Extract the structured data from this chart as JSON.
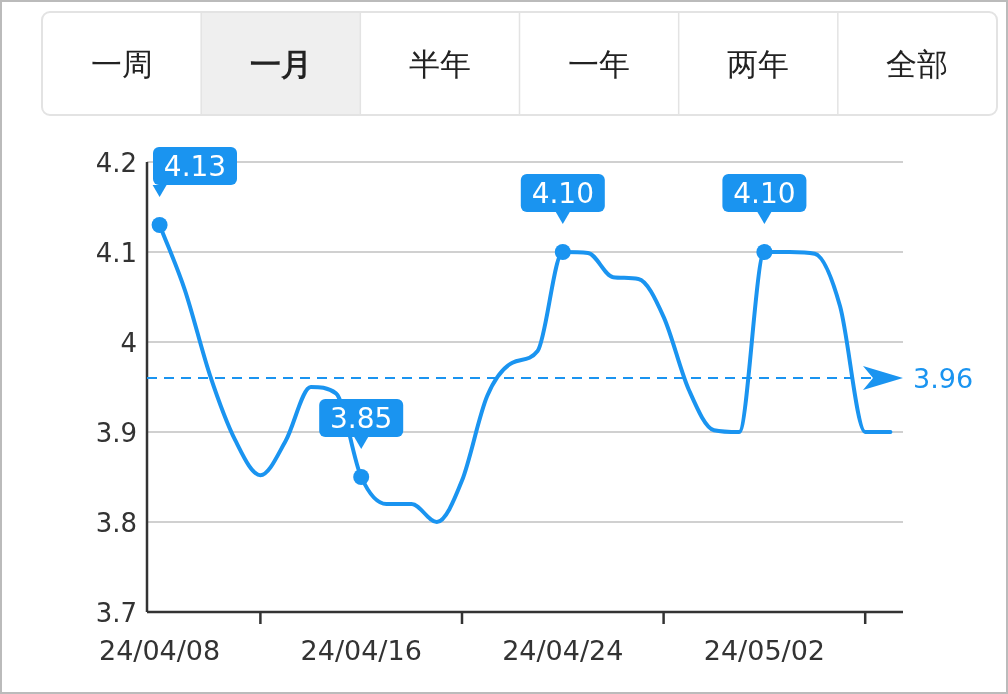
{
  "chart_data": {
    "type": "line",
    "categories": [
      "24/04/08",
      null,
      null,
      null,
      null,
      null,
      null,
      null,
      "24/04/16",
      null,
      null,
      null,
      null,
      null,
      null,
      null,
      "24/04/24",
      null,
      null,
      null,
      null,
      null,
      null,
      null,
      "24/05/02",
      null,
      null,
      null,
      null,
      null
    ],
    "series": [
      {
        "color": "#1a94f0",
        "values": [
          4.13,
          4.058,
          3.963,
          3.891,
          3.852,
          3.89,
          3.95,
          3.943,
          3.85,
          3.82,
          3.82,
          3.8,
          3.846,
          3.94,
          3.977,
          3.99,
          4.1,
          4.099,
          4.072,
          4.07,
          4.028,
          3.947,
          3.902,
          3.9,
          4.1,
          4.1,
          4.098,
          4.04,
          3.9,
          3.9
        ],
        "value_labels": [
          "4.13",
          null,
          null,
          null,
          null,
          null,
          null,
          null,
          "3.85",
          null,
          null,
          null,
          null,
          null,
          null,
          null,
          "4.10",
          null,
          null,
          null,
          null,
          null,
          null,
          null,
          "4.10",
          null,
          null,
          null,
          null,
          null
        ]
      }
    ],
    "ylim": [
      3.7,
      4.2
    ],
    "yticks": [
      3.7,
      3.8,
      3.9,
      4,
      4.1,
      4.2
    ],
    "grid": "y",
    "ref_lines": [
      {
        "axis": "y",
        "value": 3.96,
        "label": "3.96",
        "color": "#1a94f0",
        "line_style": "dashed"
      }
    ],
    "annotations": [
      "一周",
      "一月",
      "半年",
      "一年",
      "两年",
      "全部"
    ]
  }
}
